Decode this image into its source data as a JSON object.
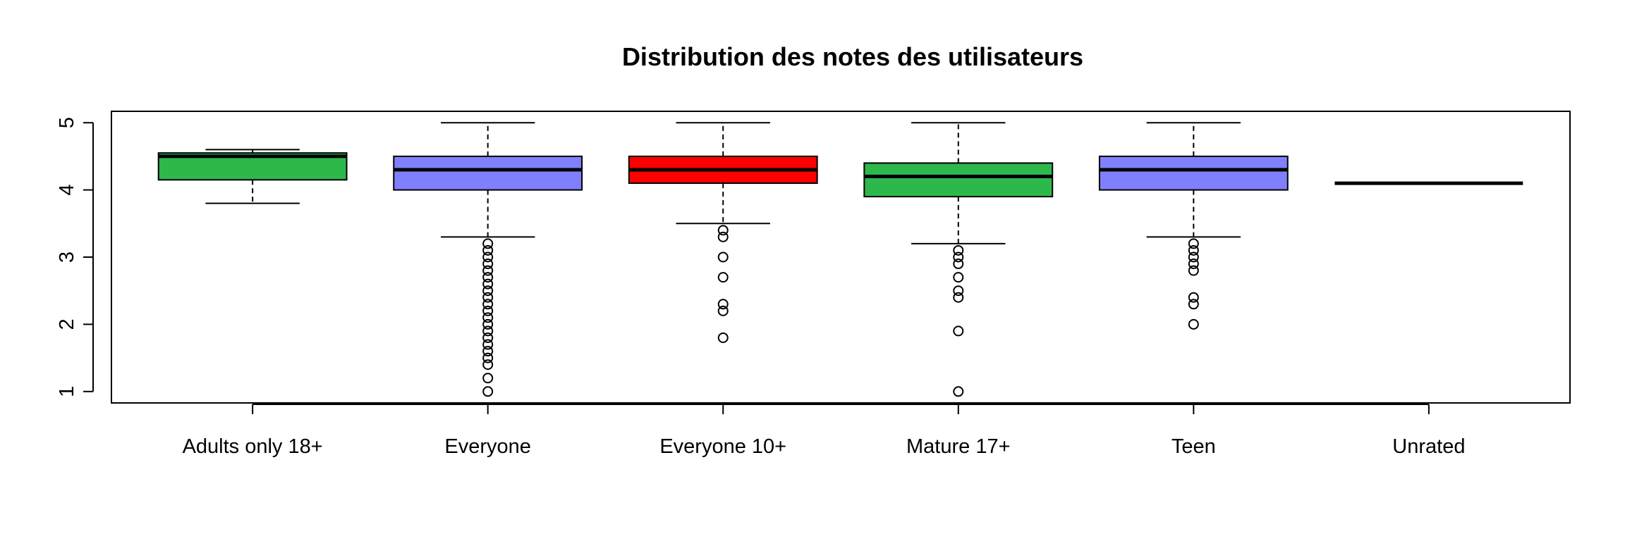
{
  "chart_data": {
    "type": "boxplot",
    "title": "Distribution des notes des utilisateurs",
    "xlabel": "",
    "ylabel": "",
    "ylim": [
      0.83,
      5.17
    ],
    "yticks": [
      1,
      2,
      3,
      4,
      5
    ],
    "categories": [
      "Adults only 18+",
      "Everyone",
      "Everyone 10+",
      "Mature 17+",
      "Teen",
      "Unrated"
    ],
    "boxes": [
      {
        "category": "Adults only 18+",
        "color": "#2DB84B",
        "min": 3.8,
        "q1": 4.15,
        "median": 4.5,
        "q3": 4.55,
        "max": 4.6,
        "outliers": []
      },
      {
        "category": "Everyone",
        "color": "#8080FF",
        "min": 3.3,
        "q1": 4.0,
        "median": 4.3,
        "q3": 4.5,
        "max": 5.0,
        "outliers": [
          3.2,
          3.1,
          3.0,
          2.9,
          2.8,
          2.7,
          2.6,
          2.5,
          2.4,
          2.3,
          2.2,
          2.1,
          2.0,
          1.9,
          1.8,
          1.7,
          1.6,
          1.5,
          1.4,
          1.2,
          1.0
        ]
      },
      {
        "category": "Everyone 10+",
        "color": "#FF0000",
        "min": 3.5,
        "q1": 4.1,
        "median": 4.3,
        "q3": 4.5,
        "max": 5.0,
        "outliers": [
          3.4,
          3.3,
          3.0,
          2.7,
          2.3,
          2.2,
          1.8
        ]
      },
      {
        "category": "Mature 17+",
        "color": "#2DB84B",
        "min": 3.2,
        "q1": 3.9,
        "median": 4.2,
        "q3": 4.4,
        "max": 5.0,
        "outliers": [
          3.1,
          3.0,
          2.9,
          2.7,
          2.5,
          2.4,
          1.9,
          1.0
        ]
      },
      {
        "category": "Teen",
        "color": "#8080FF",
        "min": 3.3,
        "q1": 4.0,
        "median": 4.3,
        "q3": 4.5,
        "max": 5.0,
        "outliers": [
          3.2,
          3.1,
          3.0,
          2.9,
          2.8,
          2.4,
          2.3,
          2.0
        ]
      },
      {
        "category": "Unrated",
        "color": "#8080FF",
        "min": 4.1,
        "q1": 4.1,
        "median": 4.1,
        "q3": 4.1,
        "max": 4.1,
        "outliers": []
      }
    ]
  }
}
